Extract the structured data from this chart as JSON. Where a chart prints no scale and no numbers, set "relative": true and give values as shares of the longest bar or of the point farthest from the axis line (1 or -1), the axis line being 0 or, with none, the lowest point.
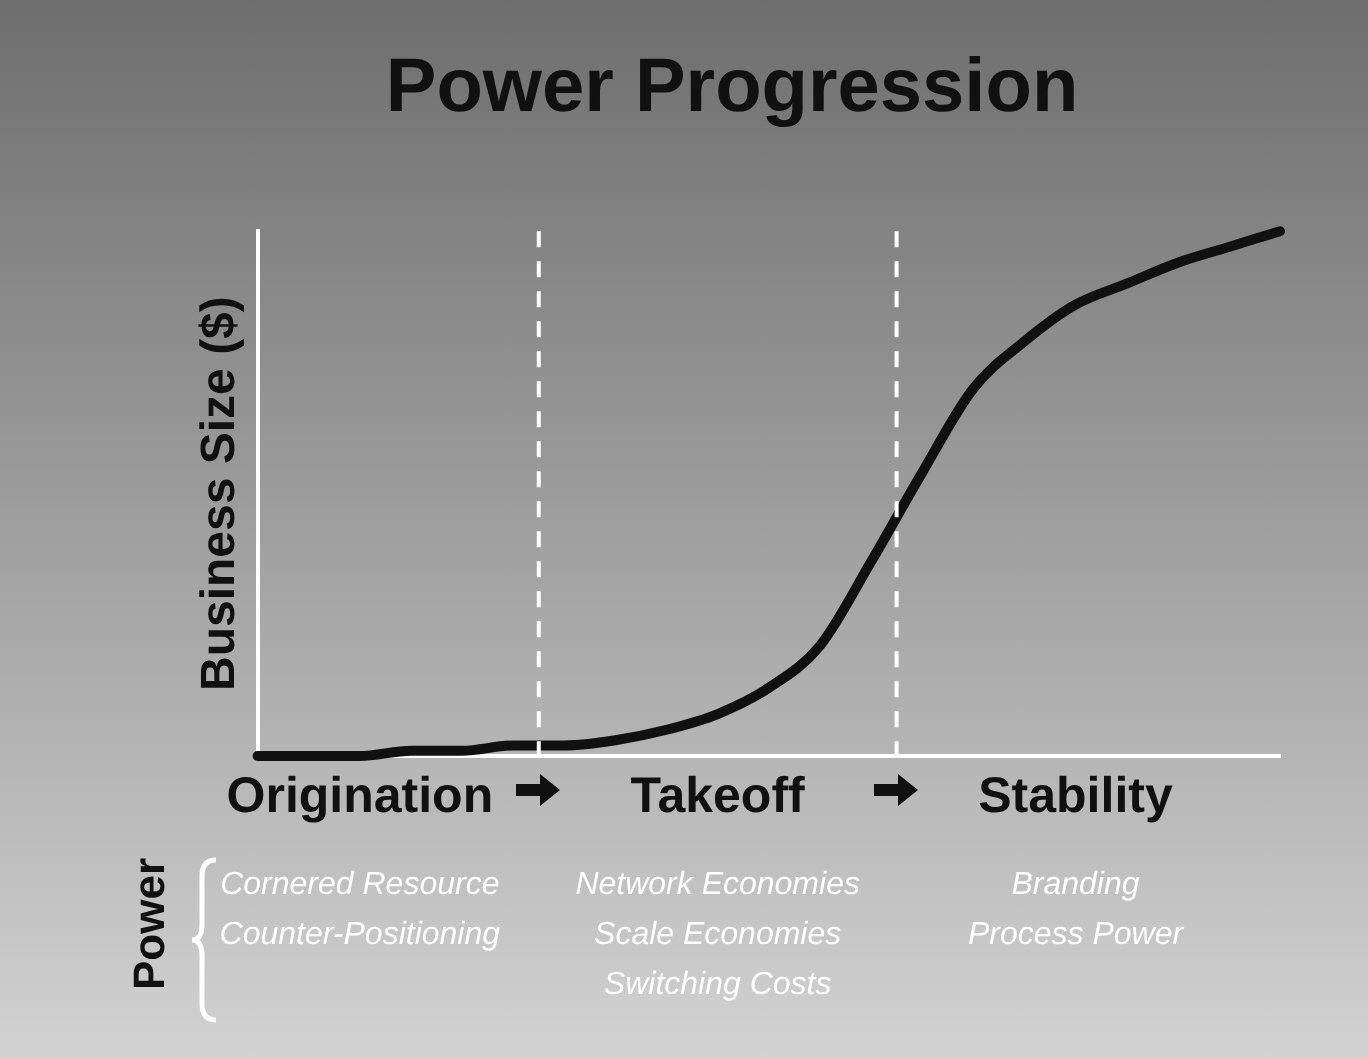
{
  "chart_data": {
    "type": "line",
    "title": "Power Progression",
    "ylabel": "Business Size ($)",
    "relative": true,
    "categories": [
      null,
      null,
      "Origination",
      null,
      null,
      null,
      null,
      null,
      null,
      "Takeoff",
      null,
      null,
      null,
      null,
      null,
      null,
      "Stability",
      null,
      null,
      null,
      null
    ],
    "series": [
      {
        "color": "#111111",
        "values": [
          0,
          0,
          0,
          0.01,
          0.01,
          0.02,
          0.02,
          0.03,
          0.05,
          0.08,
          0.13,
          0.21,
          0.37,
          0.54,
          0.7,
          0.79,
          0.86,
          0.9,
          0.94,
          0.97,
          1
        ]
      }
    ],
    "ref_lines": [
      {
        "axis": "x",
        "color": "#ffffff",
        "line_style": "dashed"
      },
      {
        "axis": "x",
        "color": "#ffffff",
        "line_style": "dashed"
      }
    ],
    "annotations": [
      "Power",
      "Cornered Resource\nCounter-Positioning",
      "Network Economies\nScale Economies\nSwitching Costs",
      "Branding\nProcess Power"
    ],
    "tick_labels": "x",
    "grid": false,
    "legend": false,
    "marker": "none",
    "line_style": "solid"
  }
}
